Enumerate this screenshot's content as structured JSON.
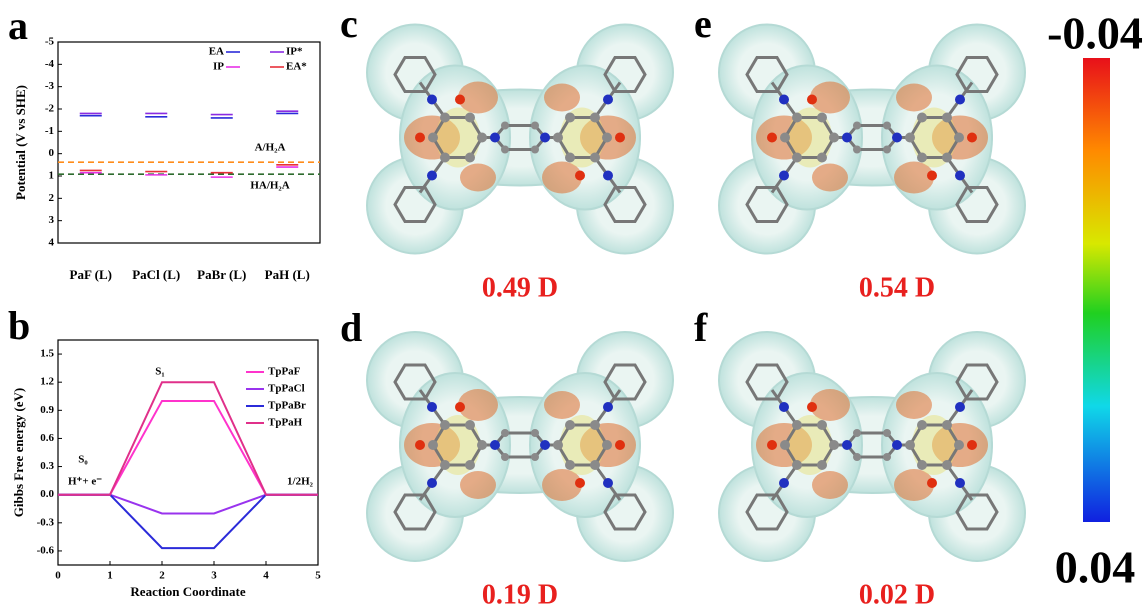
{
  "chart_data": [
    {
      "type": "level",
      "ylabel": "Potential (V vs SHE)",
      "categories": [
        "PaF (L)",
        "PaCl (L)",
        "PaBr (L)",
        "PaH (L)"
      ],
      "series": [
        {
          "name": "EA",
          "color": "#2b2bd9",
          "values": [
            -1.7,
            -1.65,
            -1.6,
            -1.8
          ]
        },
        {
          "name": "IP*",
          "color": "#8a2be2",
          "values": [
            -1.8,
            -1.8,
            -1.75,
            -1.9
          ]
        },
        {
          "name": "IP",
          "color": "#e832e8",
          "values": [
            0.85,
            0.95,
            1.05,
            0.6
          ]
        },
        {
          "name": "EA*",
          "color": "#e8303a",
          "values": [
            0.75,
            0.8,
            0.85,
            0.5
          ]
        }
      ],
      "ylim": [
        -5,
        4
      ],
      "y_inverted": true,
      "yticks": [
        -5,
        -4,
        -3,
        -2,
        -1,
        0,
        1,
        2,
        3,
        4
      ],
      "reference_lines": [
        {
          "label": "A/H₂A",
          "value": 0.38,
          "color": "#ff8c1a"
        },
        {
          "label": "HA/H₂A",
          "value": 0.92,
          "color": "#2e6b2e"
        }
      ],
      "legend": "upper right"
    },
    {
      "type": "line",
      "xlabel": "Reaction Coordinate",
      "ylabel": "Gibbs Free energy (eV)",
      "x": [
        0,
        1,
        2,
        3,
        4,
        5
      ],
      "series": [
        {
          "name": "TpPaF",
          "color": "#ff33cc",
          "values": [
            0,
            0,
            1.0,
            1.0,
            0,
            0
          ]
        },
        {
          "name": "TpPaCl",
          "color": "#9933ee",
          "values": [
            0,
            0,
            -0.2,
            -0.2,
            0,
            0
          ]
        },
        {
          "name": "TpPaBr",
          "color": "#2b2bd9",
          "values": [
            0,
            0,
            -0.57,
            -0.57,
            0,
            0
          ]
        },
        {
          "name": "TpPaH",
          "color": "#e0308a",
          "values": [
            0,
            0,
            1.2,
            1.2,
            0,
            0
          ]
        }
      ],
      "xlim": [
        0,
        5
      ],
      "ylim": [
        -0.75,
        1.65
      ],
      "xticks": [
        0,
        1,
        2,
        3,
        4,
        5
      ],
      "yticks": [
        1.5,
        1.2,
        0.9,
        0.6,
        0.3,
        {
          "value": 0,
          "label": "0.0"
        },
        -0.3,
        -0.6
      ],
      "annotations": [
        "S₁",
        "S₀",
        "H⁺+ e⁻",
        "1/2H₂"
      ],
      "legend": "upper right"
    }
  ],
  "panel_labels": [
    "a",
    "b",
    "c",
    "d",
    "e",
    "f"
  ],
  "molecules": [
    {
      "dipole": "0.49 D"
    },
    {
      "dipole": "0.19 D"
    },
    {
      "dipole": "0.54 D"
    },
    {
      "dipole": "0.02 D"
    }
  ],
  "colorbar": {
    "ticks": [
      -0.04,
      0.04
    ]
  }
}
